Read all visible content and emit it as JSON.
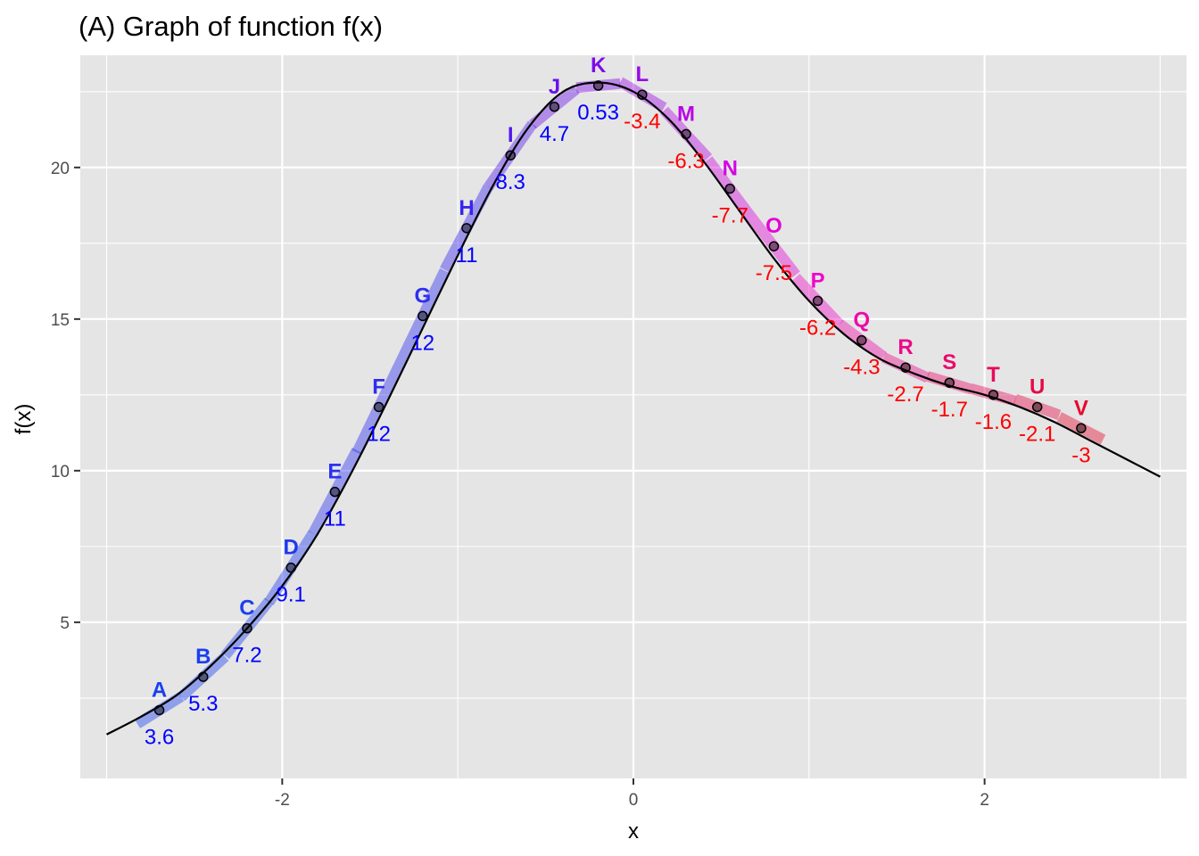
{
  "chart_data": {
    "type": "line",
    "title": "(A) Graph of function f(x)",
    "xlabel": "x",
    "ylabel": "f(x)",
    "xlim": [
      -3.15,
      3.15
    ],
    "ylim": [
      -0.15,
      23.7
    ],
    "x_ticks": [
      -2,
      0,
      2
    ],
    "x_tick_labels": [
      "-2",
      "0",
      "2"
    ],
    "y_ticks": [
      5,
      10,
      15,
      20
    ],
    "y_tick_labels": [
      "5",
      "10",
      "15",
      "20"
    ],
    "x_minor_ticks": [
      -3,
      -1,
      1,
      3
    ],
    "y_minor_ticks": [
      2.5,
      7.5,
      12.5,
      17.5,
      22.5
    ],
    "grid": true,
    "curve": {
      "x": [
        -3.0,
        -2.8,
        -2.6,
        -2.4,
        -2.2,
        -2.0,
        -1.8,
        -1.6,
        -1.4,
        -1.2,
        -1.0,
        -0.8,
        -0.6,
        -0.4,
        -0.2,
        0.0,
        0.2,
        0.4,
        0.6,
        0.8,
        1.0,
        1.2,
        1.4,
        1.6,
        1.8,
        2.0,
        2.2,
        2.4,
        2.6,
        2.8,
        3.0
      ],
      "y": [
        1.3,
        1.9,
        2.6,
        3.6,
        4.8,
        6.2,
        7.9,
        10.0,
        12.3,
        14.7,
        17.1,
        19.4,
        21.3,
        22.5,
        22.8,
        22.5,
        21.6,
        20.2,
        18.6,
        17.0,
        15.6,
        14.5,
        13.7,
        13.2,
        12.8,
        12.5,
        12.1,
        11.6,
        11.0,
        10.4,
        9.8
      ]
    },
    "points": [
      {
        "label": "A",
        "x": -2.7,
        "y": 2.1,
        "slope": "3.6",
        "color": "#1a3ff0"
      },
      {
        "label": "B",
        "x": -2.45,
        "y": 3.2,
        "slope": "5.3",
        "color": "#1a3ff0"
      },
      {
        "label": "C",
        "x": -2.2,
        "y": 4.8,
        "slope": "7.2",
        "color": "#1a3ff0"
      },
      {
        "label": "D",
        "x": -1.95,
        "y": 6.8,
        "slope": "9.1",
        "color": "#1f39f0"
      },
      {
        "label": "E",
        "x": -1.7,
        "y": 9.3,
        "slope": "11",
        "color": "#2a32f0"
      },
      {
        "label": "F",
        "x": -1.45,
        "y": 12.1,
        "slope": "12",
        "color": "#2e2ef0"
      },
      {
        "label": "G",
        "x": -1.2,
        "y": 15.1,
        "slope": "12",
        "color": "#2e2ef0"
      },
      {
        "label": "H",
        "x": -0.95,
        "y": 18.0,
        "slope": "11",
        "color": "#3a25ee"
      },
      {
        "label": "I",
        "x": -0.7,
        "y": 20.4,
        "slope": "8.3",
        "color": "#5218ec"
      },
      {
        "label": "J",
        "x": -0.45,
        "y": 22.0,
        "slope": "4.7",
        "color": "#6a10ea"
      },
      {
        "label": "K",
        "x": -0.2,
        "y": 22.7,
        "slope": "0.53",
        "color": "#7f0aea"
      },
      {
        "label": "L",
        "x": 0.05,
        "y": 22.4,
        "slope": "-3.4",
        "color": "#9a08e6"
      },
      {
        "label": "M",
        "x": 0.3,
        "y": 21.1,
        "slope": "-6.3",
        "color": "#b806e4"
      },
      {
        "label": "N",
        "x": 0.55,
        "y": 19.3,
        "slope": "-7.7",
        "color": "#d205e0"
      },
      {
        "label": "O",
        "x": 0.8,
        "y": 17.4,
        "slope": "-7.5",
        "color": "#e205d6"
      },
      {
        "label": "P",
        "x": 1.05,
        "y": 15.6,
        "slope": "-6.2",
        "color": "#f009c8"
      },
      {
        "label": "Q",
        "x": 1.3,
        "y": 14.3,
        "slope": "-4.3",
        "color": "#ee0aa8"
      },
      {
        "label": "R",
        "x": 1.55,
        "y": 13.4,
        "slope": "-2.7",
        "color": "#ec0a8a"
      },
      {
        "label": "S",
        "x": 1.8,
        "y": 12.9,
        "slope": "-1.7",
        "color": "#ea0a6c"
      },
      {
        "label": "T",
        "x": 2.05,
        "y": 12.5,
        "slope": "-1.6",
        "color": "#e80a5a"
      },
      {
        "label": "U",
        "x": 2.3,
        "y": 12.1,
        "slope": "-2.1",
        "color": "#e60a48"
      },
      {
        "label": "V",
        "x": 2.55,
        "y": 11.4,
        "slope": "-3",
        "color": "#e40a30"
      }
    ],
    "slope_color_negative": "#ff0000",
    "slope_color_positive": "#0000ff",
    "panel_color": "#e5e5e5",
    "gridline_color": "#ffffff"
  }
}
